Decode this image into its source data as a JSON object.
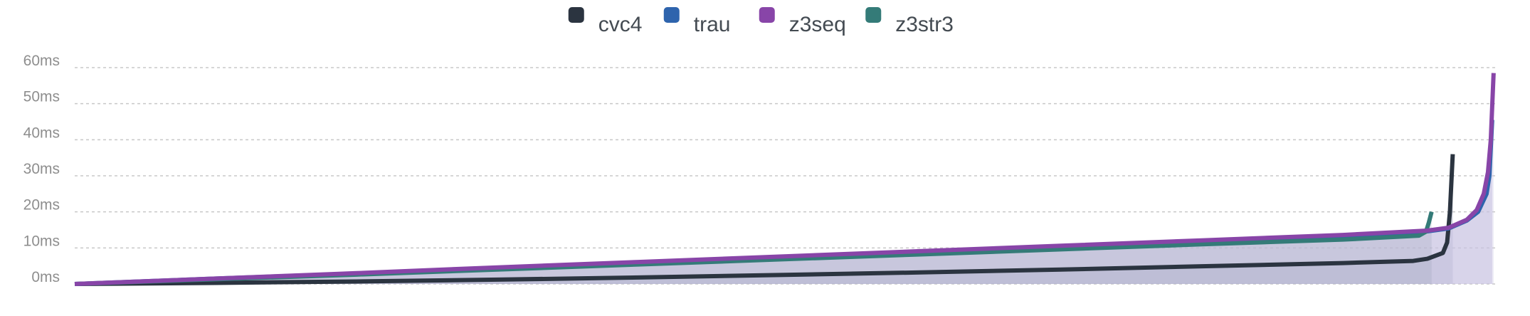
{
  "chart_data": {
    "type": "line",
    "title": "",
    "xlabel": "",
    "ylabel": "",
    "legend_position": "top-center",
    "grid": true,
    "ylim": [
      0,
      60
    ],
    "yticks": [
      {
        "value": 0,
        "label": "0ms"
      },
      {
        "value": 10,
        "label": "10ms"
      },
      {
        "value": 20,
        "label": "20ms"
      },
      {
        "value": 30,
        "label": "30ms"
      },
      {
        "value": 40,
        "label": "40ms"
      },
      {
        "value": 50,
        "label": "50ms"
      },
      {
        "value": 60,
        "label": "60ms"
      }
    ],
    "xlim": [
      0,
      100
    ],
    "series": [
      {
        "name": "cvc4",
        "color": "#2b3440",
        "fill": "rgba(150, 160, 185, 0.45)",
        "points": [
          [
            0,
            0
          ],
          [
            10,
            0.3
          ],
          [
            20,
            0.7
          ],
          [
            30,
            1.2
          ],
          [
            40,
            1.8
          ],
          [
            50,
            2.5
          ],
          [
            60,
            3.2
          ],
          [
            70,
            4.0
          ],
          [
            80,
            4.9
          ],
          [
            90,
            5.8
          ],
          [
            95,
            6.4
          ],
          [
            96,
            7.0
          ],
          [
            97.1,
            8.6
          ],
          [
            97.4,
            11.5
          ],
          [
            97.6,
            20.0
          ],
          [
            97.8,
            36.0
          ]
        ]
      },
      {
        "name": "trau",
        "color": "#2e64ad",
        "fill": "rgba(200, 195, 225, 0.55)",
        "points": [
          [
            0,
            0
          ],
          [
            10,
            1.5
          ],
          [
            20,
            2.9
          ],
          [
            30,
            4.4
          ],
          [
            40,
            5.9
          ],
          [
            50,
            7.4
          ],
          [
            60,
            8.9
          ],
          [
            70,
            10.4
          ],
          [
            80,
            11.8
          ],
          [
            90,
            13.3
          ],
          [
            96,
            14.6
          ],
          [
            97.5,
            15.4
          ],
          [
            98.8,
            17.6
          ],
          [
            99.6,
            20.0
          ],
          [
            100.2,
            25.0
          ],
          [
            100.4,
            30.0
          ],
          [
            100.6,
            45.5
          ]
        ]
      },
      {
        "name": "z3seq",
        "color": "#8845a8",
        "fill": "rgba(200, 195, 225, 0.35)",
        "points": [
          [
            0,
            0
          ],
          [
            10,
            1.5
          ],
          [
            20,
            3.0
          ],
          [
            30,
            4.6
          ],
          [
            40,
            6.1
          ],
          [
            50,
            7.6
          ],
          [
            60,
            9.1
          ],
          [
            70,
            10.6
          ],
          [
            80,
            12.1
          ],
          [
            90,
            13.6
          ],
          [
            96,
            14.8
          ],
          [
            97.5,
            15.6
          ],
          [
            98.8,
            17.8
          ],
          [
            99.5,
            20.5
          ],
          [
            100.0,
            25.0
          ],
          [
            100.3,
            31.0
          ],
          [
            100.5,
            40.0
          ],
          [
            100.7,
            58.5
          ]
        ]
      },
      {
        "name": "z3str3",
        "color": "#347b78",
        "fill": "rgba(150, 160, 185, 0.25)",
        "points": [
          [
            0,
            0
          ],
          [
            10,
            1.3
          ],
          [
            20,
            2.6
          ],
          [
            30,
            4.0
          ],
          [
            40,
            5.4
          ],
          [
            50,
            6.8
          ],
          [
            60,
            8.2
          ],
          [
            70,
            9.6
          ],
          [
            80,
            11.0
          ],
          [
            90,
            12.3
          ],
          [
            95.4,
            13.4
          ],
          [
            95.9,
            14.5
          ],
          [
            96.1,
            17.0
          ],
          [
            96.3,
            20.0
          ]
        ]
      }
    ]
  }
}
